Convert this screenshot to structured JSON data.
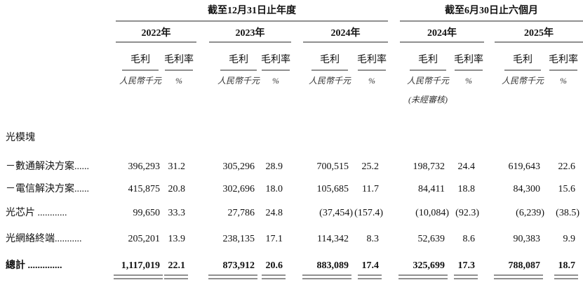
{
  "header": {
    "period_groups": [
      "截至12月31日止年度",
      "截至6月30日止六個月"
    ],
    "years": [
      "2022年",
      "2023年",
      "2024年",
      "2024年",
      "2025年"
    ],
    "metric_labels": [
      "毛利",
      "毛利率"
    ],
    "units": [
      "人民幣千元",
      "%"
    ],
    "unaudited": "(未經審核)"
  },
  "table": {
    "section": "光模塊",
    "rows": [
      {
        "label": "－數通解決方案......",
        "values": [
          "396,293",
          "31.2",
          "305,296",
          "28.9",
          "700,515",
          "25.2",
          "198,732",
          "24.4",
          "619,643",
          "22.6"
        ]
      },
      {
        "label": "－電信解決方案......",
        "values": [
          "415,875",
          "20.8",
          "302,696",
          "18.0",
          "105,685",
          "11.7",
          "84,411",
          "18.8",
          "84,300",
          "15.6"
        ]
      },
      {
        "label": "光芯片 ............",
        "values": [
          "99,650",
          "33.3",
          "27,786",
          "24.8",
          "(37,454)",
          "(157.4)",
          "(10,084)",
          "(92.3)",
          "(6,239)",
          "(38.5)"
        ]
      },
      {
        "label": "光網絡終端...........",
        "values": [
          "205,201",
          "13.9",
          "238,135",
          "17.1",
          "114,342",
          "8.3",
          "52,639",
          "8.6",
          "90,383",
          "9.9"
        ]
      },
      {
        "label": "總計 ..............",
        "values": [
          "1,117,019",
          "22.1",
          "873,912",
          "20.6",
          "883,089",
          "17.4",
          "325,699",
          "17.3",
          "788,087",
          "18.7"
        ]
      }
    ]
  }
}
